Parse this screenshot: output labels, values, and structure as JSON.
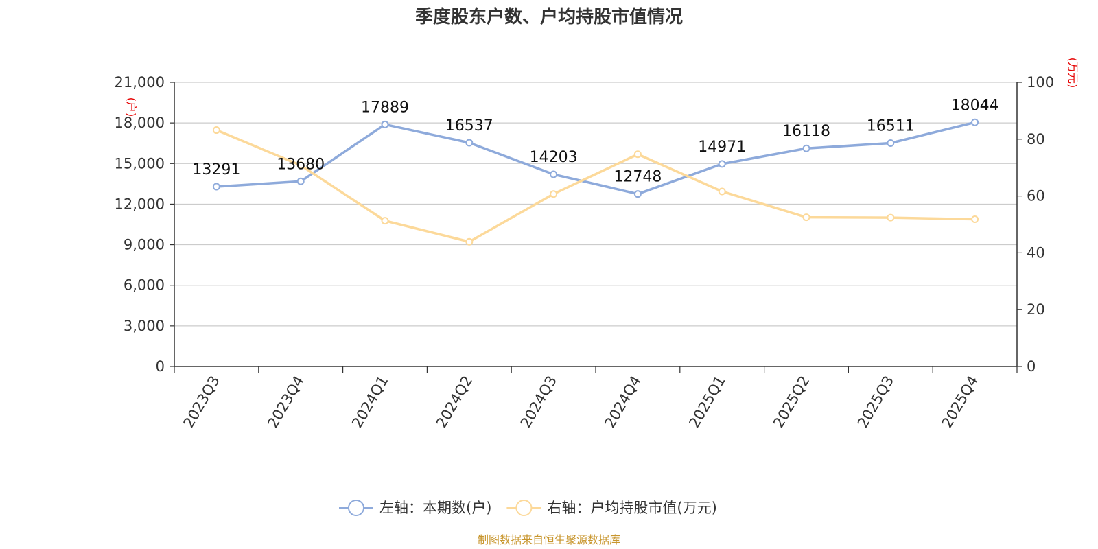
{
  "chart_data": {
    "type": "line",
    "title": "季度股东户数、户均持股市值情况",
    "categories": [
      "2023Q3",
      "2023Q4",
      "2024Q1",
      "2024Q2",
      "2024Q3",
      "2024Q4",
      "2025Q1",
      "2025Q2",
      "2025Q3",
      "2025Q4"
    ],
    "left_axis": {
      "unit": "(户)",
      "range": [
        0,
        21000
      ],
      "ticks": [
        "0",
        "3,000",
        "6,000",
        "9,000",
        "12,000",
        "15,000",
        "18,000",
        "21,000"
      ]
    },
    "right_axis": {
      "unit": "(万元)",
      "range": [
        0,
        100
      ],
      "ticks": [
        "0",
        "20",
        "40",
        "60",
        "80",
        "100"
      ]
    },
    "series": [
      {
        "name": "左轴：本期数(户)",
        "axis": "left",
        "color": "#8eaadb",
        "values": [
          13291,
          13680,
          17889,
          16537,
          14203,
          12748,
          14971,
          16118,
          16511,
          18044
        ],
        "labels": [
          "13291",
          "13680",
          "17889",
          "16537",
          "14203",
          "12748",
          "14971",
          "16118",
          "16511",
          "18044"
        ]
      },
      {
        "name": "右轴：户均持股市值(万元)",
        "axis": "right",
        "color": "#fcd99a",
        "values": [
          83.2,
          70.8,
          51.3,
          43.9,
          60.7,
          74.7,
          61.6,
          52.5,
          52.4,
          51.8
        ]
      }
    ],
    "grid": true,
    "legend": "bottom-center",
    "source": "制图数据来自恒生聚源数据库"
  }
}
